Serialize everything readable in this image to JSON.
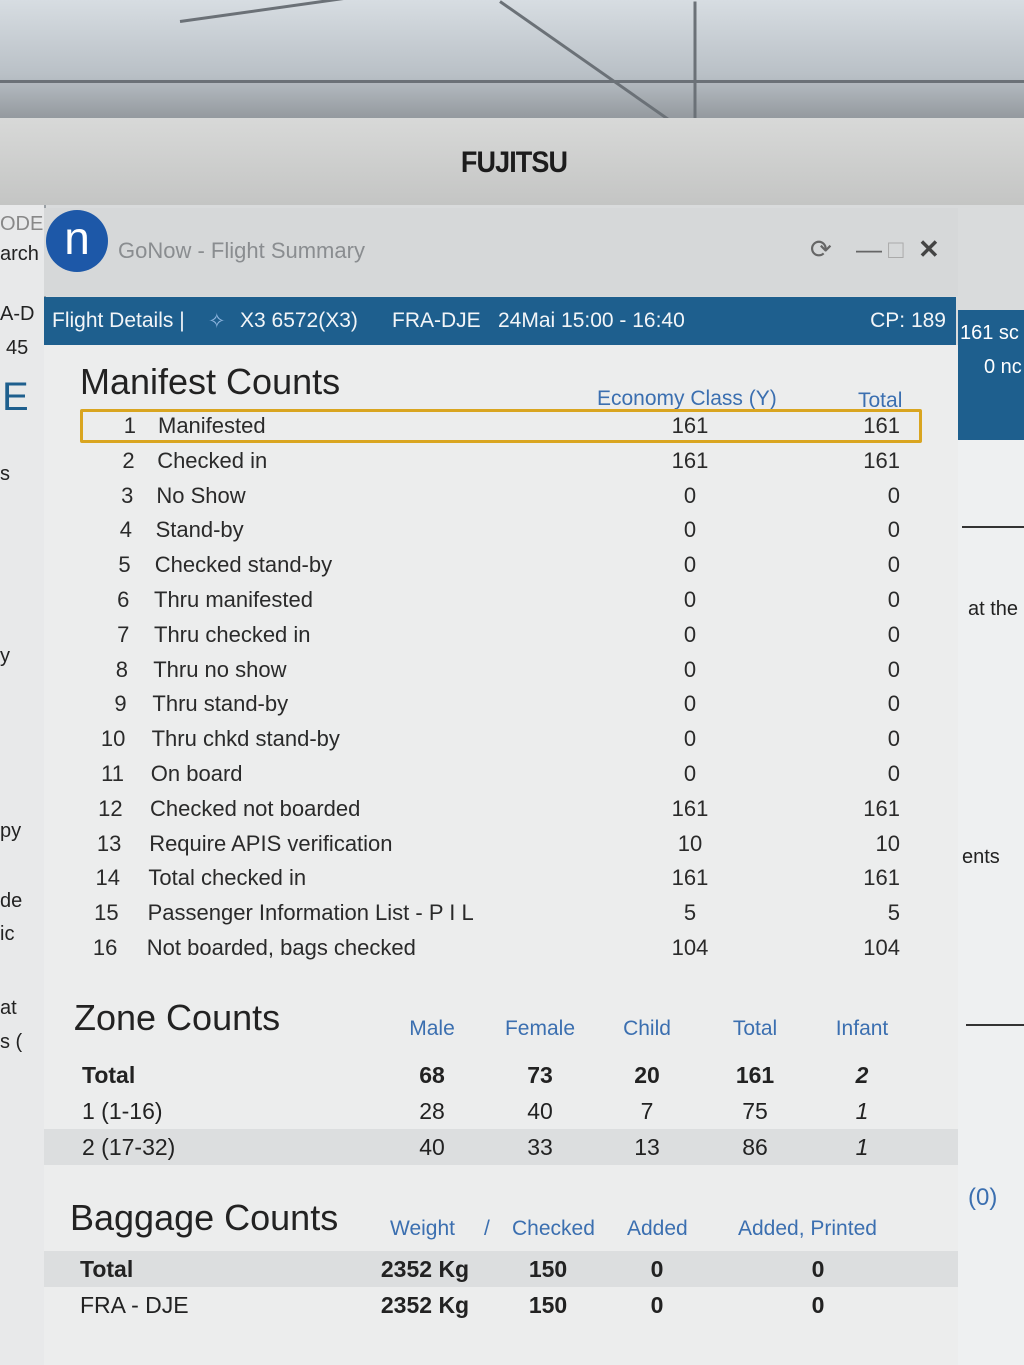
{
  "monitor_brand": "FUJITSU",
  "window": {
    "app_icon": "n",
    "title": "GoNow - Flight Summary",
    "controls": [
      "refresh-icon",
      "minimize-icon",
      "maximize-icon",
      "close-icon"
    ]
  },
  "header": {
    "section": "Flight Details |",
    "airline_icon": "airline-logo-icon",
    "flight": "X3 6572(X3)",
    "route": "FRA-DJE",
    "datetime": "24Mai 15:00 - 16:40",
    "cp": "CP: 189"
  },
  "left_fragments": [
    "ODE",
    "arch",
    "A-D",
    "45",
    "E",
    "s",
    "y",
    "py",
    "de",
    "ic",
    "at",
    "s ("
  ],
  "right_fragments": [
    "161 sc",
    "0 nc",
    "at the",
    "ents",
    "(0)"
  ],
  "manifest": {
    "title": "Manifest Counts",
    "columns": [
      "Economy Class (Y)",
      "Total"
    ],
    "rows": [
      {
        "n": "1",
        "label": "Manifested",
        "y": "161",
        "total": "161"
      },
      {
        "n": "2",
        "label": "Checked in",
        "y": "161",
        "total": "161"
      },
      {
        "n": "3",
        "label": "No Show",
        "y": "0",
        "total": "0"
      },
      {
        "n": "4",
        "label": "Stand-by",
        "y": "0",
        "total": "0"
      },
      {
        "n": "5",
        "label": "Checked stand-by",
        "y": "0",
        "total": "0"
      },
      {
        "n": "6",
        "label": "Thru manifested",
        "y": "0",
        "total": "0"
      },
      {
        "n": "7",
        "label": "Thru checked in",
        "y": "0",
        "total": "0"
      },
      {
        "n": "8",
        "label": "Thru no show",
        "y": "0",
        "total": "0"
      },
      {
        "n": "9",
        "label": "Thru stand-by",
        "y": "0",
        "total": "0"
      },
      {
        "n": "10",
        "label": "Thru chkd stand-by",
        "y": "0",
        "total": "0"
      },
      {
        "n": "11",
        "label": "On board",
        "y": "0",
        "total": "0"
      },
      {
        "n": "12",
        "label": "Checked not boarded",
        "y": "161",
        "total": "161"
      },
      {
        "n": "13",
        "label": "Require APIS verification",
        "y": "10",
        "total": "10"
      },
      {
        "n": "14",
        "label": "Total checked in",
        "y": "161",
        "total": "161"
      },
      {
        "n": "15",
        "label": "Passenger Information List - P I L",
        "y": "5",
        "total": "5"
      },
      {
        "n": "16",
        "label": "Not boarded, bags checked",
        "y": "104",
        "total": "104"
      }
    ]
  },
  "zones": {
    "title": "Zone Counts",
    "columns": [
      "Male",
      "Female",
      "Child",
      "Total",
      "Infant"
    ],
    "rows": [
      {
        "label": "Total",
        "values": [
          "68",
          "73",
          "20",
          "161",
          "2"
        ]
      },
      {
        "label": "1 (1-16)",
        "values": [
          "28",
          "40",
          "7",
          "75",
          "1"
        ]
      },
      {
        "label": "2 (17-32)",
        "values": [
          "40",
          "33",
          "13",
          "86",
          "1"
        ]
      }
    ]
  },
  "baggage": {
    "title": "Baggage Counts",
    "columns": [
      "Weight",
      "/",
      "Checked",
      "Added",
      "Added, Printed"
    ],
    "rows": [
      {
        "label": "Total",
        "weight": "2352 Kg",
        "checked": "150",
        "added": "0",
        "printed": "0"
      },
      {
        "label": "FRA - DJE",
        "weight": "2352 Kg",
        "checked": "150",
        "added": "0",
        "printed": "0"
      }
    ]
  },
  "colors": {
    "header_bg": "#1e5f8e",
    "column_header": "#3b6fb0",
    "highlight": "#d9a520",
    "app_icon": "#1d58a8"
  }
}
